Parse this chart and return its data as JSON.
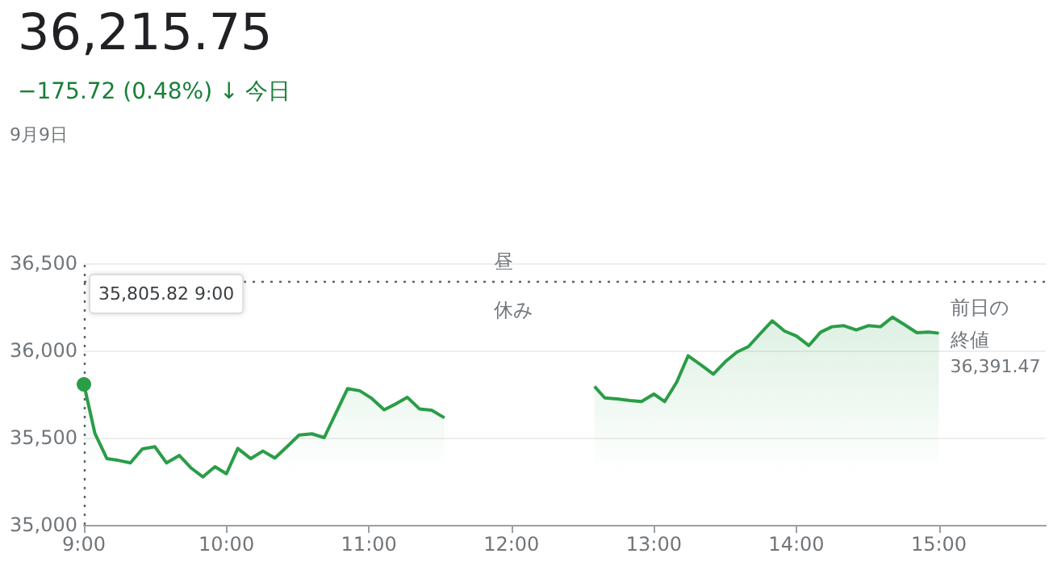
{
  "chart_data": {
    "type": "area",
    "title": "36,215.75",
    "subtitle": "−175.72 (0.48%) ↓ 今日",
    "annotations": [
      "9月9日",
      "昼",
      "休み"
    ],
    "x": [
      9,
      9.077,
      9.161,
      9.241,
      9.326,
      9.41,
      9.498,
      9.58,
      9.67,
      9.755,
      9.835,
      9.92,
      10,
      10.08,
      10.17,
      10.256,
      10.34,
      10.425,
      10.51,
      10.6,
      10.686,
      10.85,
      10.935,
      11.02,
      11.107,
      11.19,
      11.27,
      11.356,
      11.44,
      11.53,
      12,
      12.583,
      12.655,
      12.742,
      12.83,
      12.913,
      13,
      13.076,
      13.16,
      13.24,
      13.33,
      13.417,
      13.5,
      13.583,
      13.663,
      13.746,
      13.83,
      13.917,
      14,
      14.087,
      14.17,
      14.25,
      14.333,
      14.42,
      14.504,
      14.59,
      14.674,
      14.758,
      14.845,
      14.928,
      15
    ],
    "series": [
      {
        "color": "#2a9d47",
        "values": [
          35805.82,
          35525,
          35380,
          35370,
          35355,
          35435,
          35448,
          35355,
          35398,
          35324,
          35275,
          35333,
          35293,
          35438,
          35380,
          35423,
          35383,
          35448,
          35515,
          35522,
          35500,
          35781,
          35769,
          35725,
          35660,
          35694,
          35731,
          35664,
          35657,
          35614,
          null,
          35793,
          35728,
          35722,
          35713,
          35707,
          35750,
          35707,
          35818,
          35969,
          35917,
          35864,
          35935,
          35991,
          36022,
          36096,
          36170,
          36111,
          36083,
          36028,
          36105,
          36136,
          36142,
          36117,
          36142,
          36136,
          36191,
          36148,
          36102,
          36105,
          36099
        ]
      }
    ],
    "xlim": [
      9,
      15.75
    ],
    "xticks": [
      {
        "value": 9,
        "label": "9:00"
      },
      {
        "value": 10,
        "label": "10:00"
      },
      {
        "value": 11,
        "label": "11:00"
      },
      {
        "value": 12,
        "label": "12:00"
      },
      {
        "value": 13,
        "label": "13:00"
      },
      {
        "value": 14,
        "label": "14:00"
      },
      {
        "value": 15,
        "label": "15:00"
      }
    ],
    "ylim": [
      35000,
      36500
    ],
    "yticks": [
      {
        "value": 35000,
        "label": "35,000"
      },
      {
        "value": 35500,
        "label": "35,500"
      },
      {
        "value": 36000,
        "label": "36,000"
      },
      {
        "value": 36500,
        "label": "36,500"
      }
    ],
    "grid": "y",
    "ref_lines": [
      {
        "axis": "y",
        "value": 36391.47,
        "label": "前日の終値\n36,391.47",
        "line_style": "dotted"
      },
      {
        "axis": "x",
        "value": 9,
        "label": "35,805.82 9:00",
        "line_style": "dotted"
      }
    ]
  }
}
